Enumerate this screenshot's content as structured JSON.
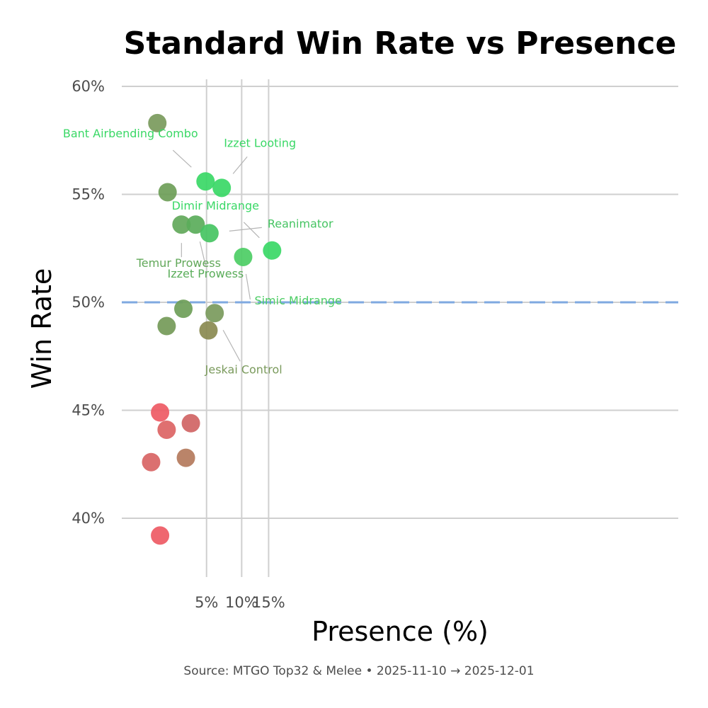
{
  "chart_data": {
    "type": "scatter",
    "title": "Standard Win Rate vs Presence",
    "xlabel": "Presence (%)",
    "ylabel": "Win Rate",
    "x_scale": "sqrt",
    "xlim": [
      0,
      18
    ],
    "ylim": [
      37.3,
      61.2
    ],
    "x_ticks": [
      5,
      10,
      15
    ],
    "x_tick_labels": [
      "5%",
      "10%",
      "15%"
    ],
    "y_ticks": [
      40,
      45,
      50,
      55,
      60
    ],
    "y_tick_labels": [
      "40%",
      "45%",
      "50%",
      "55%",
      "60%"
    ],
    "reference_line": {
      "y": 50,
      "color": "#7fa9e0",
      "style": "dashed"
    },
    "grid": true,
    "caption": "Source: MTGO Top32 & Melee  •  2025-11-10 → 2025-12-01",
    "points": [
      {
        "x": 0.88,
        "y": 58.3,
        "color": "#7a9a5c",
        "label": ""
      },
      {
        "x": 1.46,
        "y": 55.1,
        "color": "#6e9e58",
        "label": ""
      },
      {
        "x": 2.48,
        "y": 53.6,
        "color": "#62a85a",
        "label": "Temur Prowess"
      },
      {
        "x": 2.64,
        "y": 49.7,
        "color": "#6e9e58",
        "label": ""
      },
      {
        "x": 1.4,
        "y": 48.9,
        "color": "#749a58",
        "label": ""
      },
      {
        "x": 3.8,
        "y": 53.6,
        "color": "#5aad5a",
        "label": "Izzet Prowess"
      },
      {
        "x": 4.88,
        "y": 55.6,
        "color": "#3ad866",
        "label": "Bant Airbending Combo"
      },
      {
        "x": 5.35,
        "y": 53.2,
        "color": "#45c462",
        "label": "Reanimator"
      },
      {
        "x": 6.95,
        "y": 55.3,
        "color": "#3ad866",
        "label": "Izzet Looting"
      },
      {
        "x": 10.25,
        "y": 52.1,
        "color": "#4ccd64",
        "label": "Simic Midrange"
      },
      {
        "x": 15.72,
        "y": 52.4,
        "color": "#3ad866",
        "label": "Dimir Midrange"
      },
      {
        "x": 5.23,
        "y": 48.7,
        "color": "#8a8a50",
        "label": ""
      },
      {
        "x": 6.0,
        "y": 49.5,
        "color": "#7a9a5c",
        "label": "Jeskai Control"
      },
      {
        "x": 1.02,
        "y": 44.9,
        "color": "#ee5a64",
        "label": ""
      },
      {
        "x": 1.4,
        "y": 44.1,
        "color": "#dc6464",
        "label": ""
      },
      {
        "x": 0.6,
        "y": 42.6,
        "color": "#d86464",
        "label": ""
      },
      {
        "x": 2.86,
        "y": 42.8,
        "color": "#b47a5c",
        "label": ""
      },
      {
        "x": 3.32,
        "y": 44.4,
        "color": "#d06464",
        "label": ""
      },
      {
        "x": 1.02,
        "y": 39.2,
        "color": "#ee5a64",
        "label": ""
      }
    ]
  }
}
